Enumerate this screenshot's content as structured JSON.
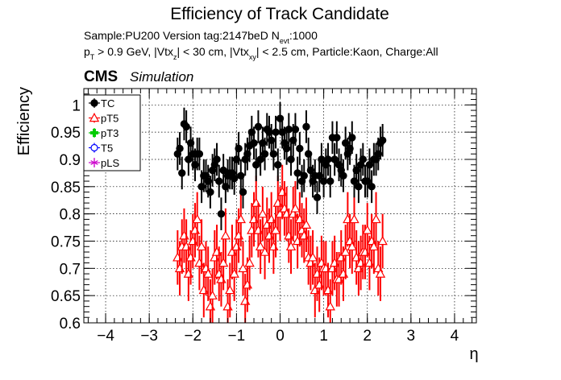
{
  "header": {
    "title": "Efficiency of Track Candidate",
    "sample_line": {
      "prefix": "Sample:PU200   Version tag:2147beD  N",
      "sub": "evt",
      "suffix": ":1000"
    },
    "cuts_line": {
      "p1": "p",
      "s1": "T",
      "p2": " > 0.9 GeV, |Vtx",
      "s2": "z",
      "p3": "| < 30 cm, |Vtx",
      "s3": "xy",
      "p4": "| < 2.5 cm, Particle:Kaon, Charge:All"
    },
    "cms_label": "CMS",
    "cms_sublabel": "Simulation"
  },
  "colors": {
    "TC": "#000000",
    "pT5": "#ff0000",
    "pT3": "#00cc00",
    "T5": "#0000ff",
    "pLS": "#cc00cc"
  },
  "chart_data": {
    "type": "scatter",
    "ylabel": "Efficiency",
    "xlabel": "η",
    "xlim": [
      -4.5,
      4.5
    ],
    "ylim": [
      0.6,
      1.03
    ],
    "x_ticks": [
      -4,
      -3,
      -2,
      -1,
      0,
      1,
      2,
      3,
      4
    ],
    "x_tick_labels": [
      "−4",
      "−3",
      "−2",
      "−1",
      "0",
      "1",
      "2",
      "3",
      "4"
    ],
    "y_ticks": [
      0.6,
      0.65,
      0.7,
      0.75,
      0.8,
      0.85,
      0.9,
      0.95,
      1.0
    ],
    "y_tick_labels": [
      "0.6",
      "0.65",
      "0.7",
      "0.75",
      "0.8",
      "0.85",
      "0.9",
      "0.95",
      "1"
    ],
    "grid": true,
    "legend_position": "top-left",
    "legend": [
      {
        "name": "TC",
        "marker": "circle-filled"
      },
      {
        "name": "pT5",
        "marker": "triangle-open"
      },
      {
        "name": "pT3",
        "marker": "cross"
      },
      {
        "name": "T5",
        "marker": "circle-open"
      },
      {
        "name": "pLS",
        "marker": "star"
      }
    ],
    "series": [
      {
        "name": "TC",
        "x": [
          -2.35,
          -2.3,
          -2.25,
          -2.2,
          -2.15,
          -2.1,
          -2.05,
          -2.0,
          -1.95,
          -1.9,
          -1.85,
          -1.8,
          -1.75,
          -1.7,
          -1.65,
          -1.6,
          -1.55,
          -1.5,
          -1.45,
          -1.4,
          -1.35,
          -1.3,
          -1.25,
          -1.2,
          -1.15,
          -1.1,
          -1.05,
          -1.0,
          -0.95,
          -0.9,
          -0.85,
          -0.8,
          -0.75,
          -0.7,
          -0.65,
          -0.6,
          -0.55,
          -0.5,
          -0.45,
          -0.4,
          -0.35,
          -0.3,
          -0.25,
          -0.2,
          -0.15,
          -0.1,
          -0.05,
          0.0,
          0.05,
          0.1,
          0.15,
          0.2,
          0.25,
          0.3,
          0.35,
          0.4,
          0.45,
          0.5,
          0.55,
          0.6,
          0.65,
          0.7,
          0.75,
          0.8,
          0.85,
          0.9,
          0.95,
          1.0,
          1.05,
          1.1,
          1.15,
          1.2,
          1.25,
          1.3,
          1.35,
          1.4,
          1.45,
          1.5,
          1.55,
          1.6,
          1.65,
          1.7,
          1.75,
          1.8,
          1.85,
          1.9,
          1.95,
          2.0,
          2.05,
          2.1,
          2.15,
          2.2,
          2.25,
          2.3,
          2.35
        ],
        "y": [
          0.91,
          0.92,
          0.875,
          0.965,
          0.96,
          0.9,
          0.93,
          0.91,
          0.89,
          0.91,
          0.91,
          0.85,
          0.87,
          0.87,
          0.86,
          0.84,
          0.88,
          0.89,
          0.9,
          0.86,
          0.8,
          0.88,
          0.85,
          0.87,
          0.875,
          0.875,
          0.865,
          0.9,
          0.92,
          0.87,
          0.84,
          0.9,
          0.91,
          0.925,
          0.95,
          0.93,
          0.89,
          0.96,
          0.9,
          0.93,
          0.91,
          0.955,
          0.95,
          0.935,
          0.91,
          0.95,
          0.89,
          0.975,
          0.95,
          0.93,
          0.92,
          0.955,
          0.9,
          0.935,
          0.955,
          0.875,
          0.92,
          0.86,
          0.87,
          0.96,
          0.91,
          0.88,
          0.86,
          0.87,
          0.83,
          0.87,
          0.9,
          0.86,
          0.89,
          0.9,
          0.86,
          0.94,
          0.9,
          0.94,
          0.89,
          0.88,
          0.87,
          0.93,
          0.91,
          0.92,
          0.94,
          0.86,
          0.88,
          0.85,
          0.89,
          0.9,
          0.86,
          0.86,
          0.89,
          0.85,
          0.9,
          0.9,
          0.91,
          0.93,
          0.935
        ],
        "err": [
          0.03,
          0.03,
          0.03,
          0.03,
          0.03,
          0.03,
          0.03,
          0.03,
          0.03,
          0.03,
          0.03,
          0.03,
          0.03,
          0.03,
          0.03,
          0.03,
          0.03,
          0.03,
          0.03,
          0.03,
          0.03,
          0.03,
          0.03,
          0.03,
          0.03,
          0.03,
          0.03,
          0.03,
          0.03,
          0.03,
          0.03,
          0.03,
          0.03,
          0.03,
          0.03,
          0.03,
          0.03,
          0.03,
          0.03,
          0.03,
          0.03,
          0.03,
          0.03,
          0.03,
          0.03,
          0.03,
          0.03,
          0.03,
          0.03,
          0.03,
          0.03,
          0.03,
          0.03,
          0.03,
          0.03,
          0.03,
          0.03,
          0.03,
          0.03,
          0.03,
          0.03,
          0.03,
          0.03,
          0.03,
          0.03,
          0.03,
          0.03,
          0.03,
          0.03,
          0.03,
          0.03,
          0.03,
          0.03,
          0.03,
          0.03,
          0.03,
          0.03,
          0.03,
          0.03,
          0.03,
          0.03,
          0.03,
          0.03,
          0.03,
          0.03,
          0.03,
          0.03,
          0.03,
          0.03,
          0.03,
          0.03,
          0.03,
          0.03,
          0.03,
          0.03
        ]
      },
      {
        "name": "pT5",
        "x": [
          -2.35,
          -2.3,
          -2.25,
          -2.2,
          -2.15,
          -2.1,
          -2.05,
          -2.0,
          -1.95,
          -1.9,
          -1.85,
          -1.8,
          -1.75,
          -1.7,
          -1.65,
          -1.6,
          -1.55,
          -1.5,
          -1.45,
          -1.4,
          -1.35,
          -1.3,
          -1.25,
          -1.2,
          -1.15,
          -1.1,
          -1.05,
          -1.0,
          -0.95,
          -0.9,
          -0.85,
          -0.8,
          -0.75,
          -0.7,
          -0.65,
          -0.6,
          -0.55,
          -0.5,
          -0.45,
          -0.4,
          -0.35,
          -0.3,
          -0.25,
          -0.2,
          -0.15,
          -0.1,
          -0.05,
          0.0,
          0.05,
          0.1,
          0.15,
          0.2,
          0.25,
          0.3,
          0.35,
          0.4,
          0.45,
          0.5,
          0.55,
          0.6,
          0.65,
          0.7,
          0.75,
          0.8,
          0.85,
          0.9,
          0.95,
          1.0,
          1.05,
          1.1,
          1.15,
          1.2,
          1.25,
          1.3,
          1.35,
          1.4,
          1.45,
          1.5,
          1.55,
          1.6,
          1.65,
          1.7,
          1.75,
          1.8,
          1.85,
          1.9,
          1.95,
          2.0,
          2.05,
          2.1,
          2.15,
          2.2,
          2.25,
          2.3,
          2.35
        ],
        "y": [
          0.72,
          0.7,
          0.74,
          0.76,
          0.74,
          0.69,
          0.72,
          0.75,
          0.77,
          0.79,
          0.71,
          0.74,
          0.66,
          0.7,
          0.69,
          0.63,
          0.65,
          0.72,
          0.73,
          0.69,
          0.68,
          0.71,
          0.76,
          0.63,
          0.66,
          0.73,
          0.69,
          0.74,
          0.76,
          0.79,
          0.7,
          0.64,
          0.67,
          0.71,
          0.77,
          0.79,
          0.82,
          0.77,
          0.74,
          0.8,
          0.73,
          0.78,
          0.76,
          0.79,
          0.74,
          0.77,
          0.82,
          0.8,
          0.84,
          0.81,
          0.8,
          0.76,
          0.74,
          0.8,
          0.81,
          0.75,
          0.79,
          0.77,
          0.76,
          0.78,
          0.72,
          0.71,
          0.72,
          0.66,
          0.69,
          0.67,
          0.71,
          0.7,
          0.7,
          0.66,
          0.63,
          0.7,
          0.71,
          0.68,
          0.68,
          0.72,
          0.69,
          0.73,
          0.79,
          0.75,
          0.74,
          0.79,
          0.72,
          0.7,
          0.71,
          0.73,
          0.73,
          0.77,
          0.71,
          0.75,
          0.74,
          0.79,
          0.7,
          0.69,
          0.75
        ],
        "err": [
          0.05,
          0.05,
          0.05,
          0.05,
          0.05,
          0.05,
          0.05,
          0.05,
          0.05,
          0.05,
          0.05,
          0.05,
          0.05,
          0.05,
          0.05,
          0.05,
          0.05,
          0.05,
          0.05,
          0.05,
          0.05,
          0.05,
          0.05,
          0.05,
          0.05,
          0.05,
          0.05,
          0.05,
          0.05,
          0.05,
          0.05,
          0.05,
          0.05,
          0.05,
          0.05,
          0.05,
          0.05,
          0.05,
          0.05,
          0.05,
          0.05,
          0.05,
          0.05,
          0.05,
          0.05,
          0.05,
          0.05,
          0.05,
          0.05,
          0.05,
          0.05,
          0.05,
          0.05,
          0.05,
          0.05,
          0.05,
          0.05,
          0.05,
          0.05,
          0.05,
          0.05,
          0.05,
          0.05,
          0.05,
          0.05,
          0.05,
          0.05,
          0.05,
          0.05,
          0.05,
          0.05,
          0.05,
          0.05,
          0.05,
          0.05,
          0.05,
          0.05,
          0.05,
          0.05,
          0.05,
          0.05,
          0.05,
          0.05,
          0.05,
          0.05,
          0.05,
          0.05,
          0.05,
          0.05,
          0.05,
          0.05,
          0.05,
          0.05,
          0.05,
          0.05
        ]
      },
      {
        "name": "pT3",
        "x": [],
        "y": [],
        "err": []
      },
      {
        "name": "T5",
        "x": [],
        "y": [],
        "err": []
      },
      {
        "name": "pLS",
        "x": [],
        "y": [],
        "err": []
      }
    ]
  }
}
